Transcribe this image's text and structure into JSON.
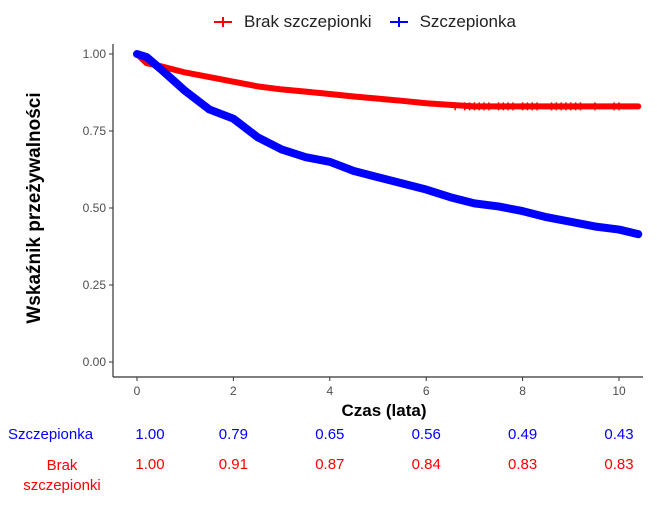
{
  "chart_data": {
    "type": "line",
    "subtype": "kaplan-meier",
    "title": "",
    "xlabel": "Czas (lata)",
    "ylabel": "Wskaźnik przeżywalności",
    "xlim": [
      -0.5,
      10.5
    ],
    "ylim": [
      0.0,
      1.0
    ],
    "xticks": [
      0,
      2,
      4,
      6,
      8,
      10
    ],
    "xtick_labels": [
      "0",
      "2",
      "4",
      "6",
      "8",
      "10"
    ],
    "yticks": [
      0.0,
      0.25,
      0.5,
      0.75,
      1.0
    ],
    "ytick_labels": [
      "0.00",
      "0.25",
      "0.50",
      "0.75",
      "1.00"
    ],
    "grid": false,
    "legend_position": "top",
    "series": [
      {
        "name": "Brak szczepionki",
        "color": "#ff0000",
        "x": [
          0,
          0.2,
          0.5,
          1,
          1.5,
          2,
          2.5,
          3,
          3.5,
          4,
          4.5,
          5,
          5.5,
          6,
          6.5,
          7,
          7.5,
          8,
          8.5,
          9,
          9.5,
          10,
          10.4
        ],
        "y": [
          1.0,
          0.97,
          0.96,
          0.94,
          0.925,
          0.91,
          0.895,
          0.885,
          0.878,
          0.87,
          0.862,
          0.855,
          0.848,
          0.84,
          0.835,
          0.83,
          0.83,
          0.83,
          0.83,
          0.83,
          0.83,
          0.83,
          0.83
        ]
      },
      {
        "name": "Szczepionka",
        "color": "#0000ff",
        "x": [
          0,
          0.2,
          0.5,
          1,
          1.5,
          2,
          2.5,
          3,
          3.5,
          4,
          4.5,
          5,
          5.5,
          6,
          6.5,
          7,
          7.5,
          8,
          8.5,
          9,
          9.5,
          10,
          10.4
        ],
        "y": [
          1.0,
          0.99,
          0.95,
          0.88,
          0.82,
          0.79,
          0.73,
          0.69,
          0.665,
          0.65,
          0.62,
          0.6,
          0.58,
          0.56,
          0.535,
          0.515,
          0.505,
          0.49,
          0.47,
          0.455,
          0.44,
          0.43,
          0.415
        ]
      }
    ],
    "risk_table": {
      "times": [
        0,
        2,
        4,
        6,
        8,
        10
      ],
      "rows": [
        {
          "label": "Szczepionka",
          "color": "#0000ff",
          "values": [
            "1.00",
            "0.79",
            "0.65",
            "0.56",
            "0.49",
            "0.43"
          ]
        },
        {
          "label_lines": [
            "Brak",
            "szczepionki"
          ],
          "label": "Brak szczepionki",
          "color": "#ff0000",
          "values": [
            "1.00",
            "0.91",
            "0.87",
            "0.84",
            "0.83",
            "0.83"
          ]
        }
      ]
    }
  },
  "legend": {
    "items": [
      {
        "label": "Brak szczepionki",
        "color": "#ff0000"
      },
      {
        "label": "Szczepionka",
        "color": "#0000ff"
      }
    ]
  }
}
